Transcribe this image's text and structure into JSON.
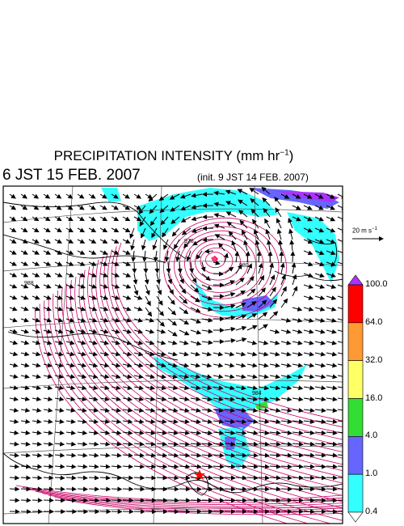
{
  "title": {
    "main": "PRECIPITATION INTENSITY (mm hr",
    "unit_exp": "−1",
    "close": ")"
  },
  "valid_time": "6 JST 15 FEB. 2007",
  "init_time": "(init. 9 JST 14 FEB. 2007)",
  "vector_scale": {
    "label": "20 m s",
    "exp": "−1"
  },
  "colorbar": {
    "labels": [
      "100.0",
      "64.0",
      "32.0",
      "16.0",
      "4.0",
      "1.0",
      "0.4"
    ],
    "colors": [
      "#ff0000",
      "#ff9933",
      "#ffff66",
      "#33dd33",
      "#6666ff",
      "#33ffff"
    ],
    "over_color": "#aa33ff",
    "under_color": "#ffffff"
  },
  "colors": {
    "isobar": "#cc0066",
    "border": "#000000",
    "grid": "#555555",
    "vector": "#000000"
  },
  "isobar_labels": [
    "976",
    "980",
    "984",
    "988"
  ]
}
